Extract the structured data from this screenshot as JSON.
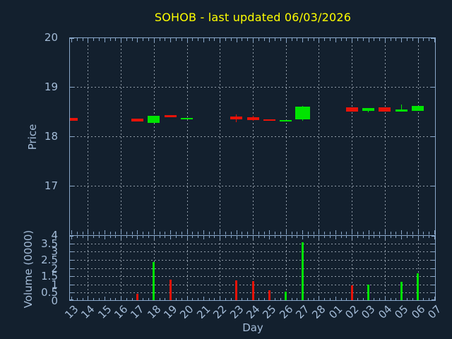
{
  "title": {
    "text": "SOHOB - last updated 06/03/2026"
  },
  "colors": {
    "background": "#13202e",
    "title": "#ffff00",
    "axis": "#89a7c9",
    "tick_text": "#a4bcd8",
    "grid": "#b0bbc7",
    "up": "#00e400",
    "down": "#e81309"
  },
  "chart_data": {
    "type": "candlestick+volume",
    "title": "SOHOB - last updated 06/03/2026",
    "xlabel": "Day",
    "x_categories": [
      "13",
      "14",
      "15",
      "16",
      "17",
      "18",
      "19",
      "20",
      "21",
      "22",
      "23",
      "24",
      "25",
      "26",
      "27",
      "28",
      "01",
      "02",
      "03",
      "04",
      "05",
      "06",
      "07"
    ],
    "grid_x_categories": [
      "14",
      "16",
      "18",
      "20",
      "22",
      "24",
      "26",
      "28",
      "02",
      "04",
      "06"
    ],
    "price_axis": {
      "label": "Price",
      "ticks": [
        20,
        19,
        18,
        17
      ],
      "range": [
        16.07,
        20
      ],
      "grid": true
    },
    "volume_axis": {
      "label": "Volume (0000)",
      "ticks": [
        4,
        3.5,
        3,
        2.5,
        2,
        1.5,
        1,
        0.5,
        0
      ],
      "range": [
        0,
        4
      ],
      "grid": true
    },
    "candles": [
      {
        "day": "13",
        "open": 18.37,
        "close": 18.31,
        "high": 18.37,
        "low": 18.31,
        "dir": "down"
      },
      {
        "day": "17",
        "open": 18.36,
        "close": 18.3,
        "high": 18.36,
        "low": 18.3,
        "dir": "down"
      },
      {
        "day": "18",
        "open": 18.27,
        "close": 18.41,
        "high": 18.41,
        "low": 18.27,
        "dir": "up"
      },
      {
        "day": "19",
        "open": 18.43,
        "close": 18.38,
        "high": 18.43,
        "low": 18.38,
        "dir": "down"
      },
      {
        "day": "20",
        "open": 18.35,
        "close": 18.37,
        "high": 18.37,
        "low": 18.35,
        "dir": "up"
      },
      {
        "day": "23",
        "open": 18.4,
        "close": 18.34,
        "high": 18.45,
        "low": 18.28,
        "dir": "down"
      },
      {
        "day": "24",
        "open": 18.39,
        "close": 18.33,
        "high": 18.41,
        "low": 18.31,
        "dir": "down"
      },
      {
        "day": "25",
        "open": 18.34,
        "close": 18.31,
        "high": 18.34,
        "low": 18.31,
        "dir": "down"
      },
      {
        "day": "26",
        "open": 18.3,
        "close": 18.33,
        "high": 18.33,
        "low": 18.3,
        "dir": "up"
      },
      {
        "day": "27",
        "open": 18.34,
        "close": 18.6,
        "high": 18.62,
        "low": 18.32,
        "dir": "up",
        "wide": true
      },
      {
        "day": "02",
        "open": 18.59,
        "close": 18.5,
        "high": 18.59,
        "low": 18.5,
        "dir": "down"
      },
      {
        "day": "03",
        "open": 18.51,
        "close": 18.57,
        "high": 18.57,
        "low": 18.48,
        "dir": "up"
      },
      {
        "day": "04",
        "open": 18.58,
        "close": 18.5,
        "high": 18.58,
        "low": 18.5,
        "dir": "down"
      },
      {
        "day": "05",
        "open": 18.5,
        "close": 18.55,
        "high": 18.64,
        "low": 18.5,
        "dir": "up"
      },
      {
        "day": "06",
        "open": 18.52,
        "close": 18.61,
        "high": 18.61,
        "low": 18.52,
        "dir": "up"
      }
    ],
    "volumes": [
      {
        "day": "17",
        "value": 0.42,
        "dir": "down"
      },
      {
        "day": "18",
        "value": 2.36,
        "dir": "up"
      },
      {
        "day": "19",
        "value": 1.3,
        "dir": "down"
      },
      {
        "day": "20",
        "value": 0.06,
        "dir": "up"
      },
      {
        "day": "23",
        "value": 1.25,
        "dir": "down"
      },
      {
        "day": "24",
        "value": 1.22,
        "dir": "down"
      },
      {
        "day": "25",
        "value": 0.64,
        "dir": "down"
      },
      {
        "day": "26",
        "value": 0.56,
        "dir": "up"
      },
      {
        "day": "27",
        "value": 3.56,
        "dir": "up"
      },
      {
        "day": "02",
        "value": 0.94,
        "dir": "down"
      },
      {
        "day": "03",
        "value": 1.0,
        "dir": "up"
      },
      {
        "day": "04",
        "value": 0.06,
        "dir": "down"
      },
      {
        "day": "05",
        "value": 1.18,
        "dir": "up"
      },
      {
        "day": "06",
        "value": 1.66,
        "dir": "up"
      }
    ]
  }
}
